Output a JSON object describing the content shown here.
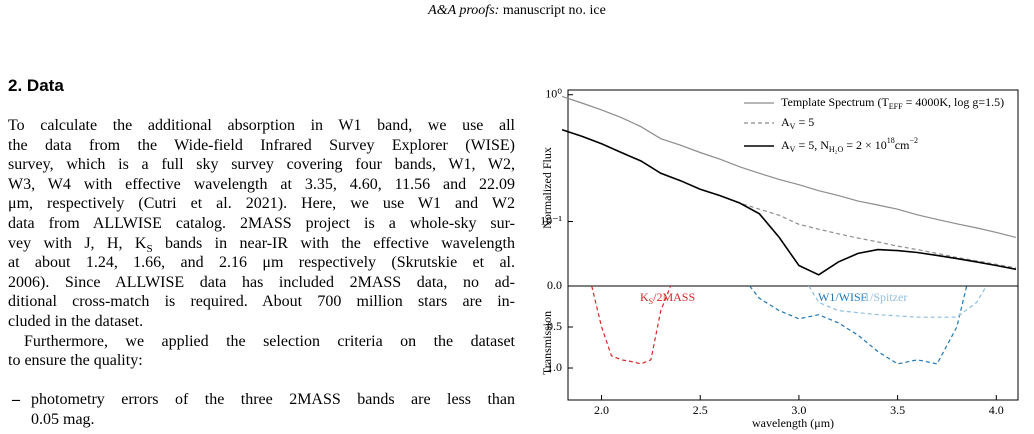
{
  "header": {
    "journal": "A&A proofs:",
    "manuscript": "manuscript no. ice"
  },
  "section": {
    "number": "2.",
    "title": "Data"
  },
  "paragraphs": [
    [
      "To calculate the additional absorption in W1 band, we use all",
      "the data from the Wide-field Infrared Survey Explorer (WISE)",
      "survey, which is a full sky survey covering four bands, W1, W2,",
      "W3, W4 with effective wavelength at 3.35, 4.60, 11.56 and 22.09",
      "μm, respectively (Cutri et al. 2021). Here, we use W1 and W2",
      "data from ALLWISE catalog. 2MASS project is a whole-sky sur-",
      [
        "vey with J, H, K",
        {
          "sub": "S"
        },
        " bands in near-IR with the effective wavelength"
      ],
      "at about 1.24, 1.66, and 2.16 μm respectively (Skrutskie et al.",
      "2006). Since ALLWISE data has included 2MASS data, no ad-",
      "ditional cross-match is required. About 700 million stars are in-",
      "cluded in the dataset."
    ],
    [
      "Furthermore, we applied the selection criteria on the dataset",
      "to ensure the quality:"
    ]
  ],
  "list": {
    "bullet": "–",
    "items": [
      [
        "photometry errors of the three 2MASS bands are less than",
        "0.05 mag."
      ]
    ]
  },
  "chart_data": [
    {
      "type": "line",
      "ylabel": "Normalized Flux",
      "yscale": "log",
      "legend": "upper right",
      "xlim": [
        1.83,
        4.11
      ],
      "ylim": [
        0.031,
        1.09
      ],
      "yticks": [
        {
          "value": 1,
          "label": "10⁰"
        },
        {
          "value": 0.1,
          "label": "10⁻¹"
        }
      ],
      "x": [
        1.8,
        1.9,
        2.0,
        2.1,
        2.2,
        2.3,
        2.4,
        2.5,
        2.6,
        2.7,
        2.8,
        2.9,
        3.0,
        3.1,
        3.2,
        3.3,
        3.4,
        3.5,
        3.6,
        3.7,
        3.8,
        3.9,
        4.0,
        4.1
      ],
      "series": [
        {
          "name": [
            "Template Spectrum (T",
            {
              "sub": "EFF"
            },
            " = 4000K, log g=1.5)"
          ],
          "color": "#8c8c8c",
          "linestyle": "solid",
          "values": [
            0.97,
            0.86,
            0.76,
            0.66,
            0.56,
            0.45,
            0.4,
            0.35,
            0.31,
            0.27,
            0.24,
            0.215,
            0.195,
            0.175,
            0.16,
            0.145,
            0.135,
            0.125,
            0.113,
            0.104,
            0.096,
            0.089,
            0.082,
            0.075
          ]
        },
        {
          "name": [
            "A",
            {
              "sub": "V"
            },
            " = 5"
          ],
          "color": "#8c8c8c",
          "linestyle": "dashed",
          "values": [
            0.53,
            0.47,
            0.41,
            0.35,
            0.3,
            0.24,
            0.21,
            0.18,
            0.16,
            0.14,
            0.125,
            0.112,
            0.095,
            0.087,
            0.08,
            0.074,
            0.069,
            0.064,
            0.06,
            0.056,
            0.052,
            0.049,
            0.046,
            0.043
          ]
        },
        {
          "name": [
            "A",
            {
              "sub": "V"
            },
            " = 5, N",
            {
              "sub": "H₂O"
            },
            " = 2 × 10",
            {
              "sup": "18"
            },
            "cm",
            {
              "sup": "−2"
            }
          ],
          "color": "#000000",
          "linestyle": "solid",
          "values": [
            0.53,
            0.47,
            0.41,
            0.35,
            0.3,
            0.24,
            0.21,
            0.18,
            0.16,
            0.14,
            0.115,
            0.075,
            0.045,
            0.038,
            0.048,
            0.056,
            0.06,
            0.059,
            0.057,
            0.054,
            0.051,
            0.048,
            0.045,
            0.042
          ]
        }
      ]
    },
    {
      "type": "line",
      "ylabel": "Transmission",
      "xlabel": "wavelength (μm)",
      "y_inverted": true,
      "xlim": [
        1.83,
        4.11
      ],
      "xticks": [
        {
          "value": 2,
          "label": "2.0"
        },
        2.5,
        {
          "value": 3,
          "label": "3.0"
        },
        3.5,
        {
          "value": 4,
          "label": "4.0"
        }
      ],
      "ylim": [
        0,
        1.39
      ],
      "yticks": [
        {
          "value": 0,
          "label": "0.0"
        },
        0.5,
        {
          "value": 1,
          "label": "1.0"
        }
      ],
      "series": [
        {
          "name": [
            "K",
            {
              "sub": "S"
            },
            "/2MASS"
          ],
          "color": "#d62728",
          "linestyle": "dashed",
          "x": [
            1.95,
            2.0,
            2.05,
            2.1,
            2.15,
            2.2,
            2.25,
            2.3,
            2.35
          ],
          "values": [
            0.0,
            0.5,
            0.85,
            0.9,
            0.92,
            0.95,
            0.9,
            0.3,
            0.0
          ]
        },
        {
          "name": [
            "W1/WISE"
          ],
          "color": "#1f77b4",
          "linestyle": "dashed",
          "x": [
            2.75,
            2.8,
            2.9,
            3.0,
            3.1,
            3.2,
            3.3,
            3.4,
            3.5,
            3.6,
            3.7,
            3.8,
            3.85
          ],
          "values": [
            0.0,
            0.15,
            0.3,
            0.4,
            0.35,
            0.45,
            0.6,
            0.8,
            0.95,
            0.9,
            0.95,
            0.5,
            0.0
          ]
        },
        {
          "name": [
            "I1/Spitzer"
          ],
          "color": "#8fbfe0",
          "linestyle": "dashed",
          "x": [
            3.05,
            3.1,
            3.2,
            3.4,
            3.6,
            3.8,
            3.9,
            3.95
          ],
          "values": [
            0.0,
            0.2,
            0.3,
            0.35,
            0.38,
            0.38,
            0.2,
            0.0
          ]
        }
      ]
    }
  ]
}
